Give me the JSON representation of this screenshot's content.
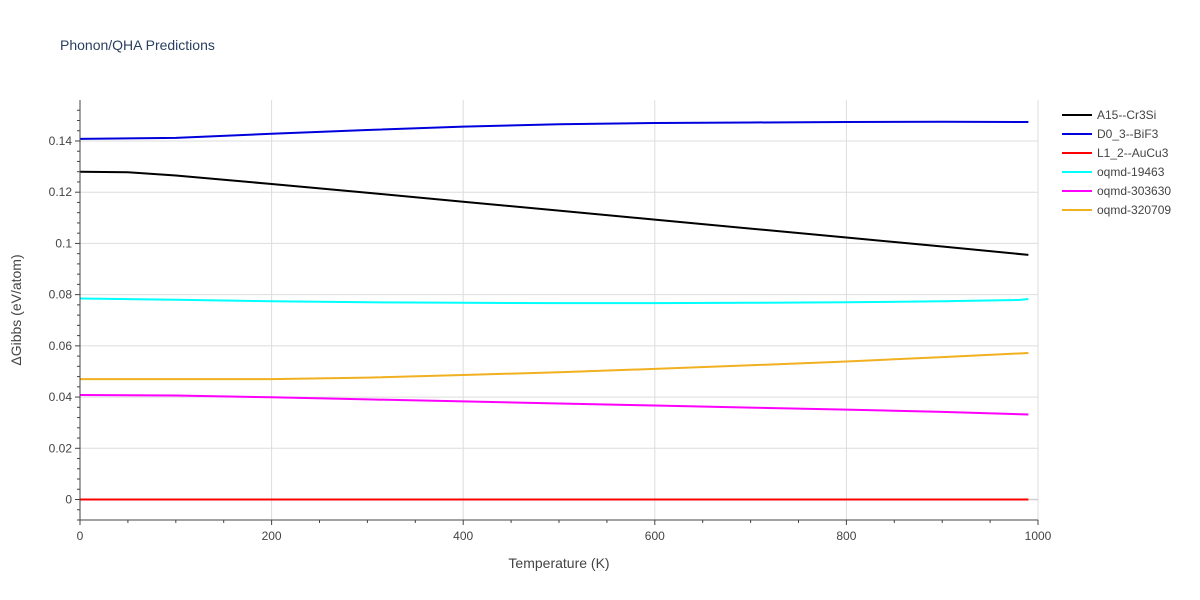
{
  "chart_data": {
    "type": "line",
    "title": "Phonon/QHA Predictions",
    "xlabel": "Temperature (K)",
    "ylabel": "ΔGibbs (eV/atom)",
    "xlim": [
      0,
      1000
    ],
    "ylim": [
      -0.008,
      0.156
    ],
    "x_ticks": [
      0,
      200,
      400,
      600,
      800,
      1000
    ],
    "x_tick_labels": [
      "0",
      "200",
      "400",
      "600",
      "800",
      "1000"
    ],
    "y_ticks": [
      0,
      0.02,
      0.04,
      0.06,
      0.08,
      0.1,
      0.12,
      0.14
    ],
    "y_tick_labels": [
      "0",
      "0.02",
      "0.04",
      "0.06",
      "0.08",
      "0.1",
      "0.12",
      "0.14"
    ],
    "grid": true,
    "legend_position": "right",
    "series": [
      {
        "name": "A15--Cr3Si",
        "color": "#000000",
        "x": [
          0,
          50,
          100,
          200,
          300,
          400,
          500,
          600,
          700,
          800,
          900,
          990
        ],
        "y": [
          0.128,
          0.1278,
          0.1265,
          0.1232,
          0.1198,
          0.1163,
          0.1128,
          0.1093,
          0.1058,
          0.1023,
          0.0988,
          0.0955
        ]
      },
      {
        "name": "D0_3--BiF3",
        "color": "#0000dd",
        "x": [
          0,
          100,
          200,
          300,
          400,
          500,
          600,
          700,
          800,
          900,
          990
        ],
        "y": [
          0.1408,
          0.1412,
          0.1428,
          0.1443,
          0.1456,
          0.1465,
          0.147,
          0.1472,
          0.1474,
          0.1475,
          0.1474
        ]
      },
      {
        "name": "L1_2--AuCu3",
        "color": "#ff0000",
        "x": [
          0,
          200,
          400,
          600,
          800,
          990
        ],
        "y": [
          0,
          0,
          0,
          0,
          0,
          0
        ]
      },
      {
        "name": "oqmd-19463",
        "color": "#00ffff",
        "x": [
          0,
          100,
          200,
          300,
          400,
          500,
          600,
          700,
          800,
          900,
          980,
          990
        ],
        "y": [
          0.0785,
          0.078,
          0.0774,
          0.077,
          0.0768,
          0.0767,
          0.0767,
          0.0768,
          0.077,
          0.0774,
          0.0779,
          0.0783
        ]
      },
      {
        "name": "oqmd-303630",
        "color": "#ff00ff",
        "x": [
          0,
          100,
          200,
          300,
          400,
          500,
          600,
          700,
          800,
          900,
          990
        ],
        "y": [
          0.0408,
          0.0406,
          0.0399,
          0.0391,
          0.0383,
          0.0375,
          0.0367,
          0.0359,
          0.0351,
          0.0342,
          0.0332
        ]
      },
      {
        "name": "oqmd-320709",
        "color": "#f0b020",
        "x": [
          0,
          100,
          200,
          300,
          400,
          500,
          600,
          700,
          800,
          900,
          990
        ],
        "y": [
          0.047,
          0.047,
          0.047,
          0.0476,
          0.0486,
          0.0497,
          0.051,
          0.0524,
          0.0539,
          0.0556,
          0.0572
        ]
      }
    ]
  }
}
